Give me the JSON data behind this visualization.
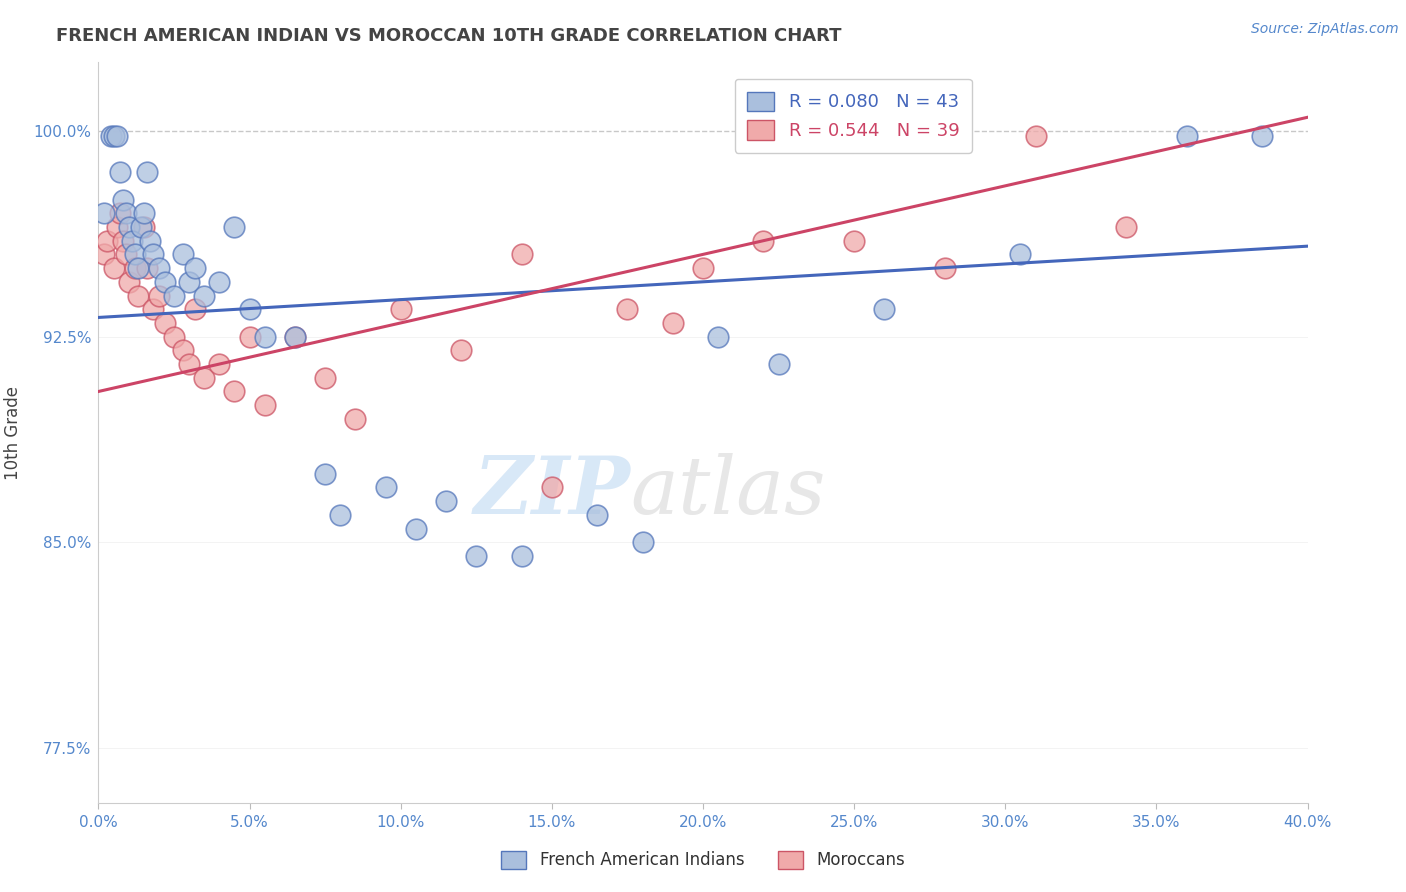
{
  "title": "FRENCH AMERICAN INDIAN VS MOROCCAN 10TH GRADE CORRELATION CHART",
  "source": "Source: ZipAtlas.com",
  "ylabel": "10th Grade",
  "xlim": [
    0.0,
    40.0
  ],
  "ylim": [
    75.5,
    102.5
  ],
  "yticks": [
    77.5,
    85.0,
    92.5,
    100.0
  ],
  "xticks": [
    0.0,
    5.0,
    10.0,
    15.0,
    20.0,
    25.0,
    30.0,
    35.0,
    40.0
  ],
  "blue_color": "#AABFDD",
  "pink_color": "#F0AAAA",
  "blue_edge_color": "#5577BB",
  "pink_edge_color": "#CC5566",
  "blue_line_color": "#4466BB",
  "pink_line_color": "#CC4466",
  "legend_blue": "R = 0.080   N = 43",
  "legend_pink": "R = 0.544   N = 39",
  "blue_scatter_x": [
    0.2,
    0.4,
    0.5,
    0.6,
    0.7,
    0.8,
    0.9,
    1.0,
    1.1,
    1.2,
    1.3,
    1.4,
    1.5,
    1.6,
    1.7,
    1.8,
    2.0,
    2.2,
    2.5,
    2.8,
    3.0,
    3.2,
    3.5,
    4.0,
    4.5,
    5.0,
    5.5,
    6.5,
    7.5,
    8.0,
    9.5,
    10.5,
    11.5,
    12.5,
    14.0,
    16.5,
    18.0,
    20.5,
    22.5,
    26.0,
    30.5,
    36.0,
    38.5
  ],
  "blue_scatter_y": [
    97.0,
    99.8,
    99.8,
    99.8,
    98.5,
    97.5,
    97.0,
    96.5,
    96.0,
    95.5,
    95.0,
    96.5,
    97.0,
    98.5,
    96.0,
    95.5,
    95.0,
    94.5,
    94.0,
    95.5,
    94.5,
    95.0,
    94.0,
    94.5,
    96.5,
    93.5,
    92.5,
    92.5,
    87.5,
    86.0,
    87.0,
    85.5,
    86.5,
    84.5,
    84.5,
    86.0,
    85.0,
    92.5,
    91.5,
    93.5,
    95.5,
    99.8,
    99.8
  ],
  "pink_scatter_x": [
    0.2,
    0.3,
    0.5,
    0.6,
    0.7,
    0.8,
    0.9,
    1.0,
    1.2,
    1.3,
    1.5,
    1.6,
    1.8,
    2.0,
    2.2,
    2.5,
    2.8,
    3.0,
    3.2,
    3.5,
    4.0,
    4.5,
    5.0,
    5.5,
    6.5,
    7.5,
    8.5,
    10.0,
    12.0,
    14.0,
    15.0,
    17.5,
    19.0,
    20.0,
    22.0,
    25.0,
    28.0,
    31.0,
    34.0
  ],
  "pink_scatter_y": [
    95.5,
    96.0,
    95.0,
    96.5,
    97.0,
    96.0,
    95.5,
    94.5,
    95.0,
    94.0,
    96.5,
    95.0,
    93.5,
    94.0,
    93.0,
    92.5,
    92.0,
    91.5,
    93.5,
    91.0,
    91.5,
    90.5,
    92.5,
    90.0,
    92.5,
    91.0,
    89.5,
    93.5,
    92.0,
    95.5,
    87.0,
    93.5,
    93.0,
    95.0,
    96.0,
    96.0,
    95.0,
    99.8,
    96.5
  ],
  "watermark_zip": "ZIP",
  "watermark_atlas": "atlas",
  "title_color": "#444444",
  "tick_color": "#5588CC",
  "grid_color": "#BBBBBB",
  "blue_trend_x": [
    0.0,
    40.0
  ],
  "blue_trend_y": [
    93.2,
    95.8
  ],
  "pink_trend_x": [
    0.0,
    40.0
  ],
  "pink_trend_y": [
    90.5,
    100.5
  ]
}
